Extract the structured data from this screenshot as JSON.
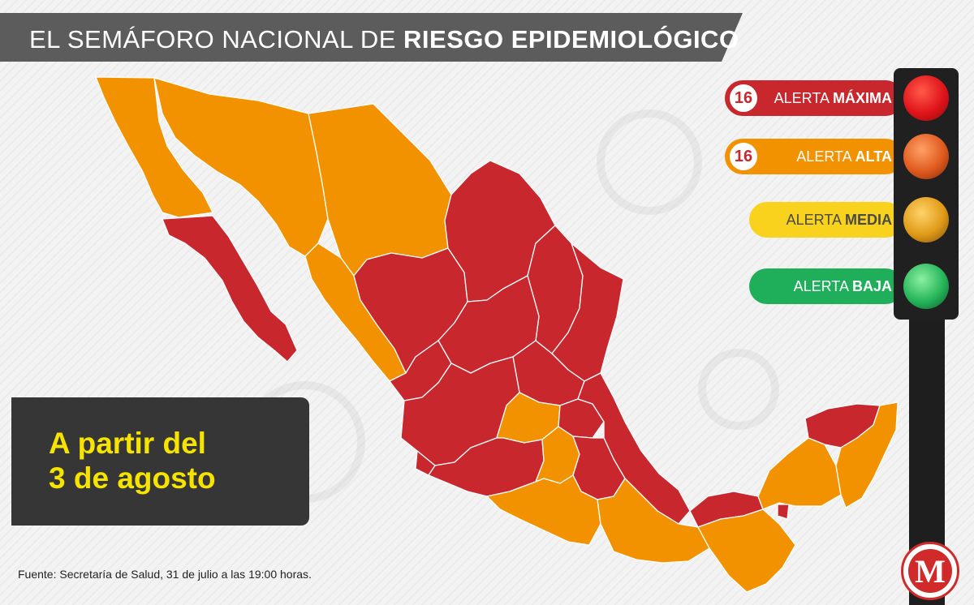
{
  "title": {
    "part1": "EL SEMÁFORO NACIONAL DE ",
    "part2": "RIESGO EPIDEMIOLÓGICO"
  },
  "date_banner": {
    "line1": "A partir del",
    "line2": "3 de agosto"
  },
  "source": "Fuente: Secretaría de Salud, 31 de julio a las 19:00 horas.",
  "legend": [
    {
      "count": "16",
      "label_prefix": "ALERTA ",
      "label_level": "MÁXIMA",
      "color": "#c8282d"
    },
    {
      "count": "16",
      "label_prefix": "ALERTA ",
      "label_level": "ALTA",
      "color": "#f39200"
    },
    {
      "count": "",
      "label_prefix": "ALERTA ",
      "label_level": "MEDIA",
      "color": "#f8d21c"
    },
    {
      "count": "",
      "label_prefix": "ALERTA ",
      "label_level": "BAJA",
      "color": "#1fae5a"
    }
  ],
  "logo_letter": "M",
  "colors": {
    "max_alert": "#c8282d",
    "high_alert": "#f39200",
    "medium_alert": "#f8d21c",
    "low_alert": "#1fae5a",
    "banner_text": "#f6e400"
  }
}
